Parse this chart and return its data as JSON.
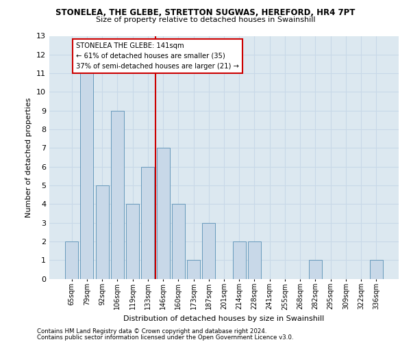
{
  "title": "STONELEA, THE GLEBE, STRETTON SUGWAS, HEREFORD, HR4 7PT",
  "subtitle": "Size of property relative to detached houses in Swainshill",
  "xlabel": "Distribution of detached houses by size in Swainshill",
  "ylabel": "Number of detached properties",
  "footer1": "Contains HM Land Registry data © Crown copyright and database right 2024.",
  "footer2": "Contains public sector information licensed under the Open Government Licence v3.0.",
  "categories": [
    "65sqm",
    "79sqm",
    "92sqm",
    "106sqm",
    "119sqm",
    "133sqm",
    "146sqm",
    "160sqm",
    "173sqm",
    "187sqm",
    "201sqm",
    "214sqm",
    "228sqm",
    "241sqm",
    "255sqm",
    "268sqm",
    "282sqm",
    "295sqm",
    "309sqm",
    "322sqm",
    "336sqm"
  ],
  "values": [
    2,
    11,
    5,
    9,
    4,
    6,
    7,
    4,
    1,
    3,
    0,
    2,
    2,
    0,
    0,
    0,
    1,
    0,
    0,
    0,
    1
  ],
  "bar_color": "#c8d8e8",
  "bar_edge_color": "#6699bb",
  "highlight_line_color": "#cc0000",
  "annotation_line1": "STONELEA THE GLEBE: 141sqm",
  "annotation_line2": "← 61% of detached houses are smaller (35)",
  "annotation_line3": "37% of semi-detached houses are larger (21) →",
  "annotation_box_color": "white",
  "annotation_box_edge_color": "#cc0000",
  "ylim": [
    0,
    13
  ],
  "yticks": [
    0,
    1,
    2,
    3,
    4,
    5,
    6,
    7,
    8,
    9,
    10,
    11,
    12,
    13
  ],
  "grid_color": "#c8d8e8",
  "background_color": "#dce8f0"
}
